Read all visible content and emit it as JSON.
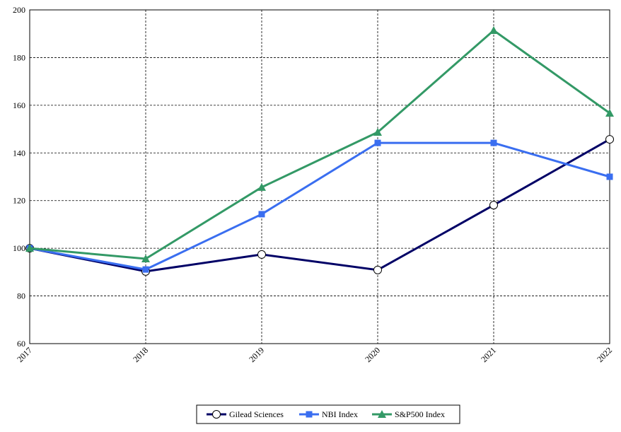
{
  "chart_data": {
    "type": "line",
    "categories": [
      "2017",
      "2018",
      "2019",
      "2020",
      "2021",
      "2022"
    ],
    "series": [
      {
        "name": "Gilead Sciences",
        "color": "#000066",
        "marker": "circle",
        "values": [
          100,
          90.3,
          97.4,
          90.9,
          118.1,
          145.7
        ]
      },
      {
        "name": "NBI Index",
        "color": "#3a6ef0",
        "marker": "square",
        "values": [
          100,
          91.1,
          114.3,
          144.2,
          144.2,
          130
        ]
      },
      {
        "name": "S&P500 Index",
        "color": "#339966",
        "marker": "triangle",
        "values": [
          100,
          95.6,
          125.6,
          148.7,
          191.4,
          156.7
        ]
      }
    ],
    "ylim": [
      60,
      200
    ],
    "yticks": [
      60,
      80,
      100,
      120,
      140,
      160,
      180,
      200
    ],
    "grid": true,
    "legend": "bottom"
  }
}
